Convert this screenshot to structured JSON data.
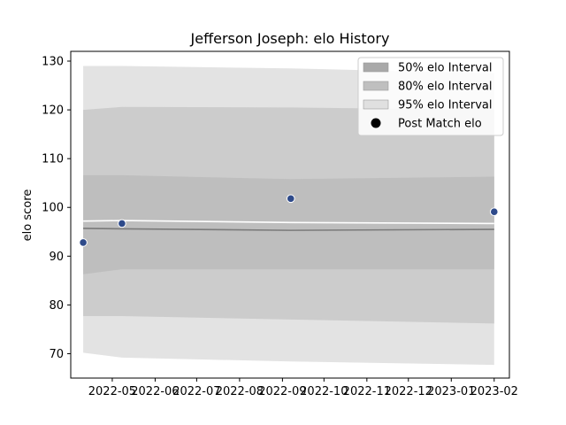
{
  "chart_data": {
    "type": "area",
    "title": "Jefferson Joseph: elo History",
    "xlabel": "",
    "ylabel": "elo score",
    "ylim": [
      65,
      132
    ],
    "xlim": [
      "2022-04-01",
      "2023-02-12"
    ],
    "yticks": [
      70,
      80,
      90,
      100,
      110,
      120,
      130
    ],
    "xticks": [
      "2022-05",
      "2022-06",
      "2022-07",
      "2022-08",
      "2022-09",
      "2022-10",
      "2022-11",
      "2022-12",
      "2023-01",
      "2023-02"
    ],
    "grid": false,
    "legend_position": "top-right",
    "dates": [
      "2022-04-10",
      "2022-05-08",
      "2022-09-07",
      "2023-02-01"
    ],
    "mean": [
      95.7,
      95.6,
      95.3,
      95.5
    ],
    "interval_95": {
      "lower": [
        70.2,
        69.2,
        68.4,
        67.7
      ],
      "upper": [
        129.0,
        129.0,
        128.5,
        127.5
      ]
    },
    "interval_80": {
      "lower": [
        77.7,
        77.7,
        77.0,
        76.2
      ],
      "upper": [
        120.0,
        120.6,
        120.5,
        120.0
      ]
    },
    "interval_50": {
      "lower": [
        86.3,
        87.3,
        87.3,
        87.3
      ],
      "upper": [
        106.6,
        106.6,
        105.8,
        106.3
      ]
    },
    "post_match_elo": [
      {
        "date": "2022-04-10",
        "value": 92.8
      },
      {
        "date": "2022-05-08",
        "value": 96.7
      },
      {
        "date": "2022-09-07",
        "value": 101.8
      },
      {
        "date": "2023-02-01",
        "value": 99.1
      }
    ],
    "trend": [
      97.2,
      97.3,
      96.9,
      96.7
    ],
    "legend": [
      {
        "label": "50% elo Interval",
        "kind": "band",
        "color": "#a9a9a9"
      },
      {
        "label": "80% elo Interval",
        "kind": "band",
        "color": "#bfbfbf"
      },
      {
        "label": "95% elo Interval",
        "kind": "band",
        "color": "#e0e0e0"
      },
      {
        "label": "Post Match elo",
        "kind": "marker",
        "color": "#000000"
      }
    ],
    "colors": {
      "band_95": "#e3e3e3",
      "band_80": "#cccccc",
      "band_50": "#bebebe",
      "mean_line": "#7a7a7a",
      "trend_line": "#ffffff",
      "marker_fill": "#2e4a8a",
      "marker_edge": "#ffffff"
    }
  }
}
